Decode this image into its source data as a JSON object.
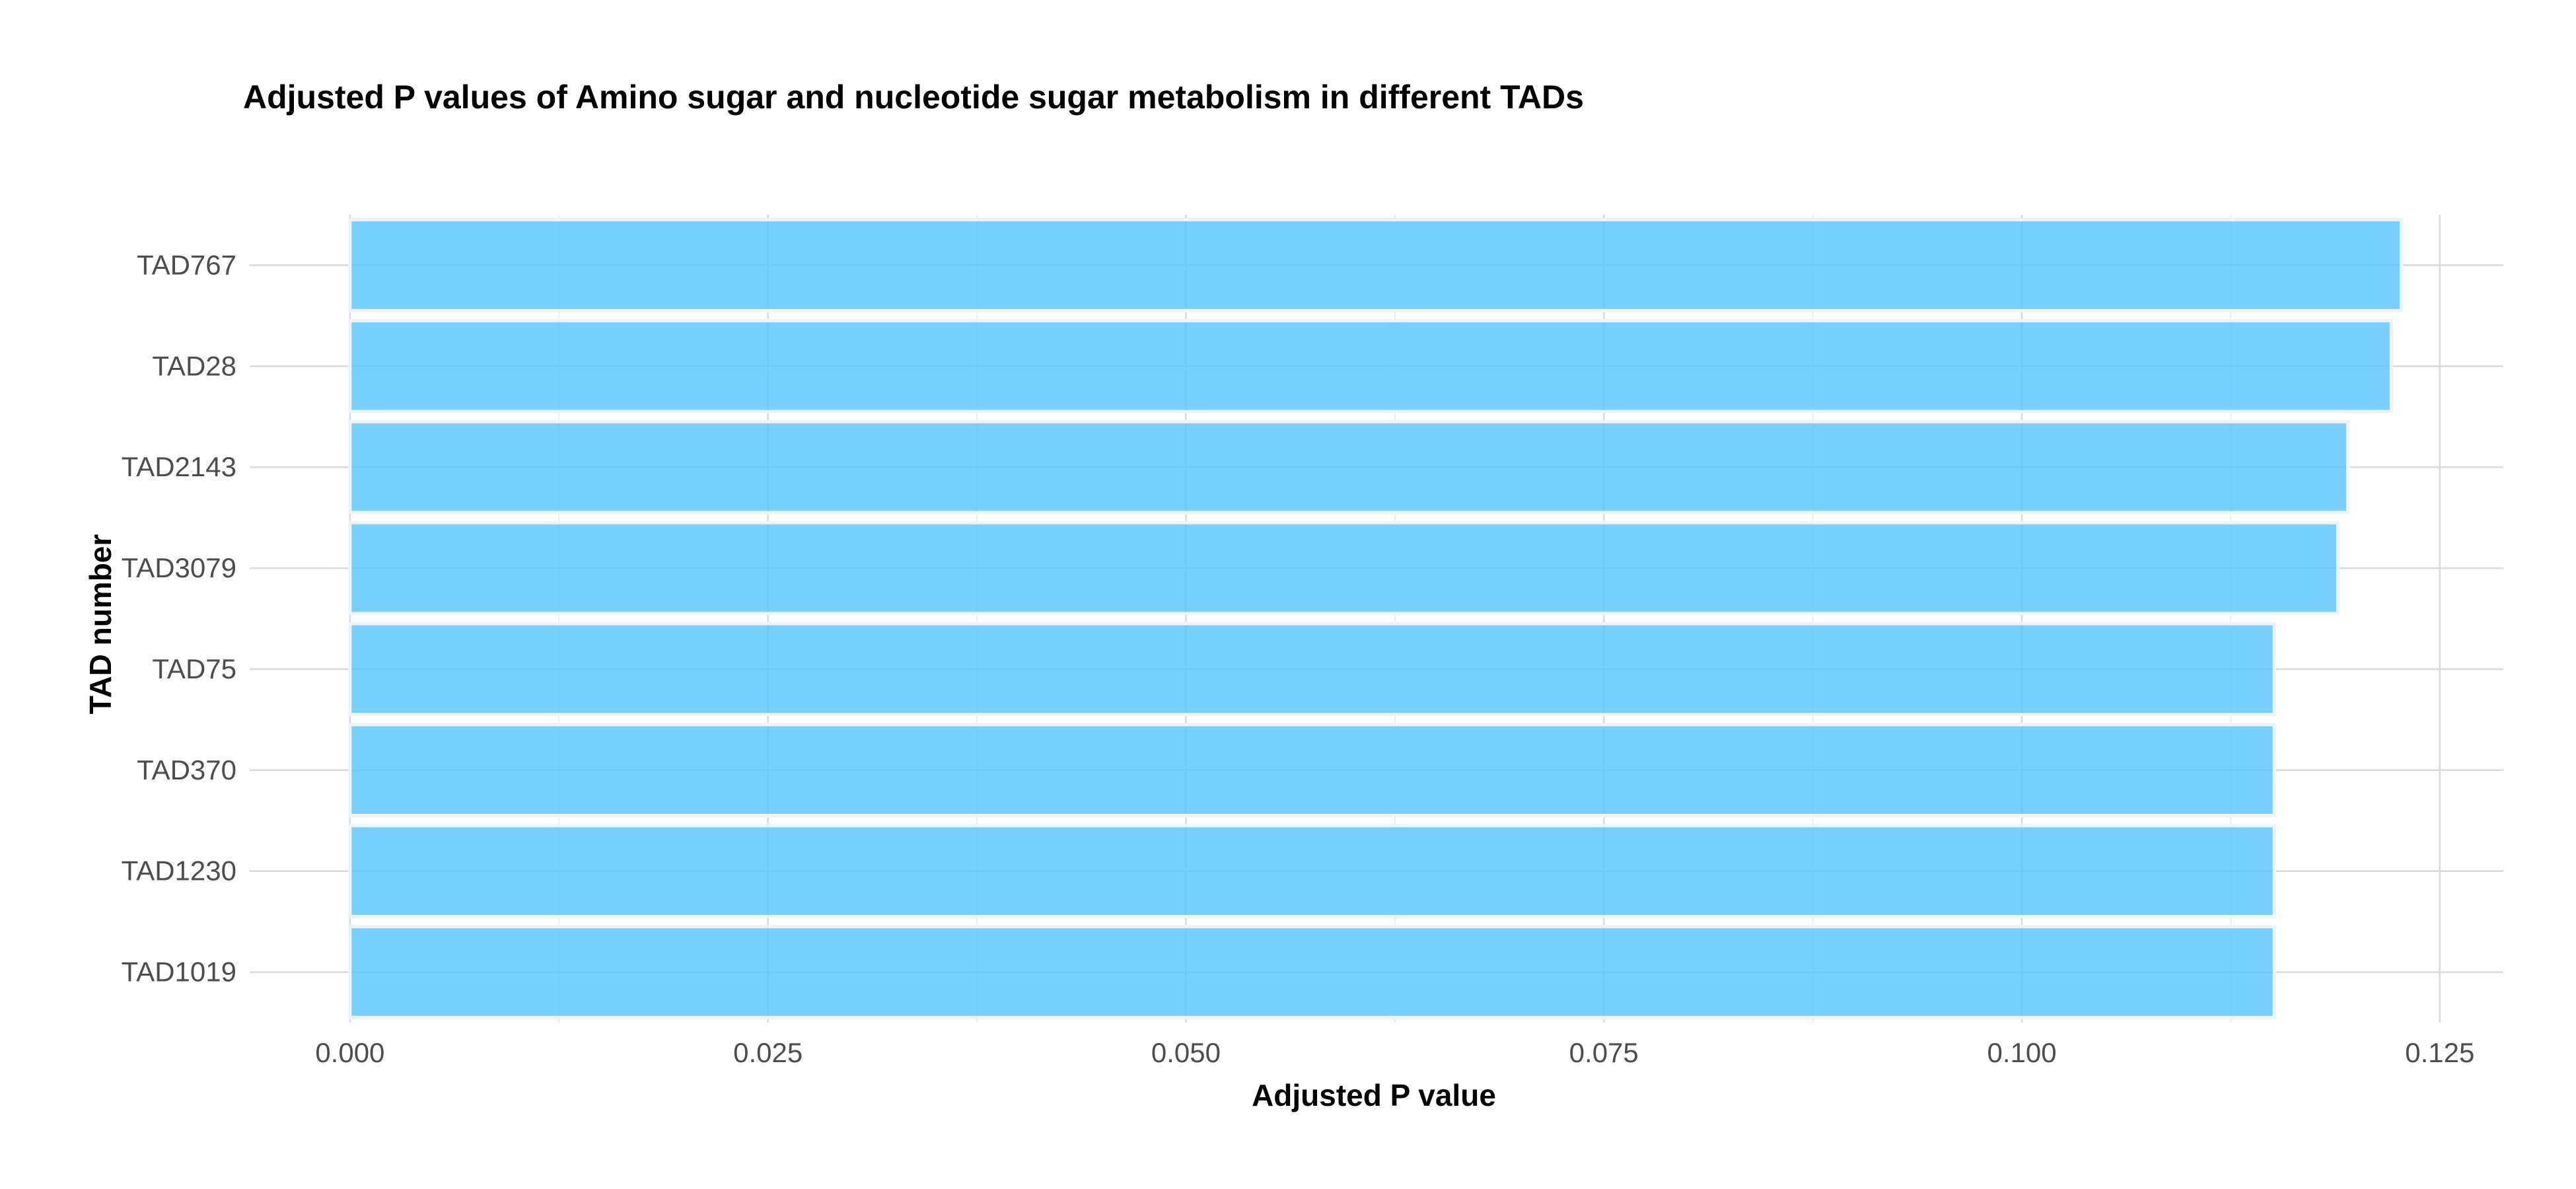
{
  "chart_data": {
    "type": "bar",
    "orientation": "horizontal",
    "title": "Adjusted P values of Amino sugar and nucleotide sugar metabolism in different TADs",
    "xlabel": "Adjusted P value",
    "ylabel": "TAD number",
    "categories": [
      "TAD767",
      "TAD28",
      "TAD2143",
      "TAD3079",
      "TAD75",
      "TAD370",
      "TAD1230",
      "TAD1019"
    ],
    "values": [
      0.1227,
      0.1221,
      0.1195,
      0.1189,
      0.1151,
      0.1151,
      0.1151,
      0.1151
    ],
    "xlim": [
      -0.006,
      0.1288
    ],
    "xticks": [
      0.0,
      0.025,
      0.05,
      0.075,
      0.1,
      0.125
    ],
    "xtick_labels": [
      "0.000",
      "0.025",
      "0.050",
      "0.075",
      "0.100",
      "0.125"
    ],
    "grid": true,
    "legend": "none",
    "bar_color": "#5bc6fb"
  }
}
